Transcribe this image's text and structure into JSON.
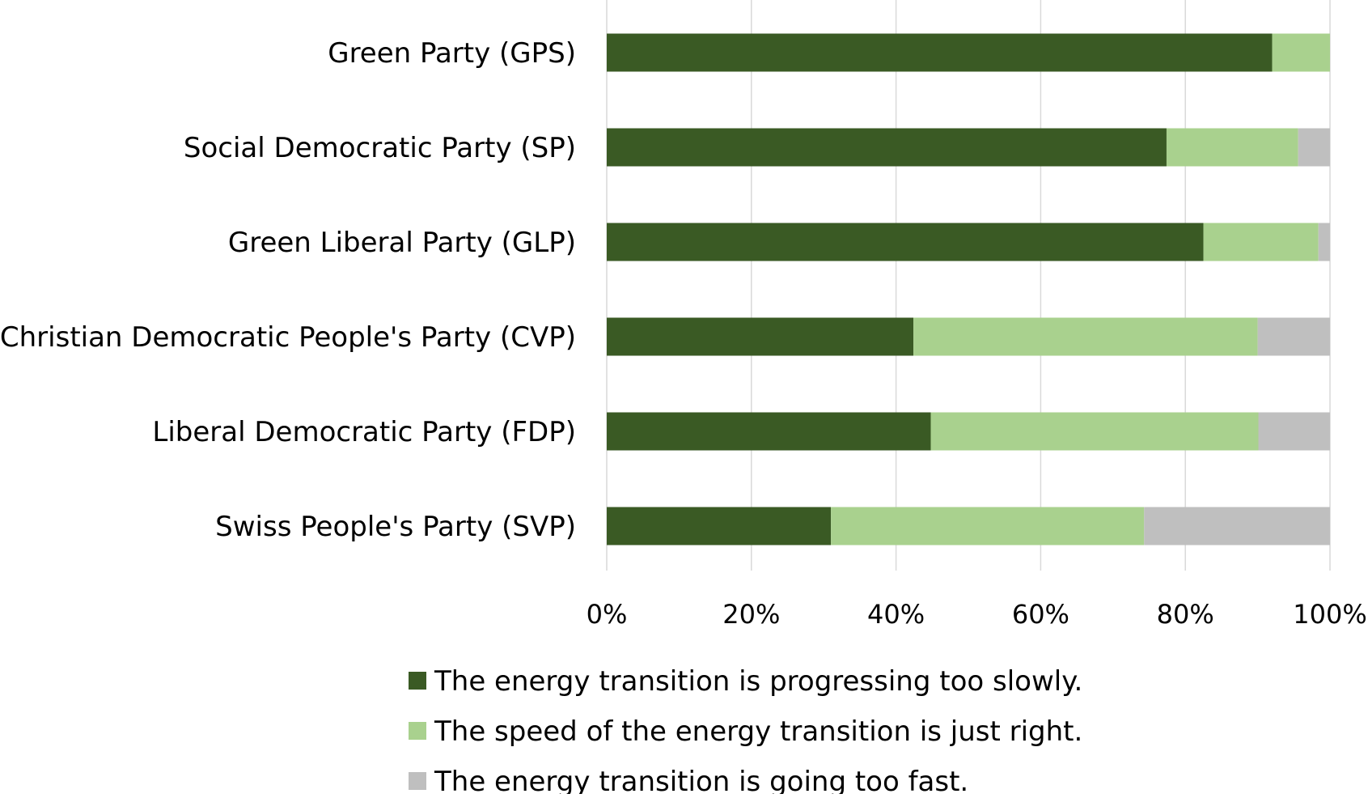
{
  "chart_data": {
    "type": "bar",
    "orientation": "horizontal",
    "stacked": "percent",
    "categories": [
      "Green Party (GPS)",
      "Social Democratic Party (SP)",
      "Green Liberal Party (GLP)",
      "Christian Democratic People's Party (CVP)",
      "Liberal Democratic Party (FDP)",
      "Swiss People's Party (SVP)"
    ],
    "series": [
      {
        "name": "The energy transition is progressing too slowly.",
        "color": "#3a5a24",
        "values": [
          92,
          77.4,
          82.5,
          42.4,
          44.8,
          31
        ]
      },
      {
        "name": "The speed of the energy transition is just right.",
        "color": "#a9d18e",
        "values": [
          8,
          18.2,
          15.9,
          47.6,
          45.3,
          43.3
        ]
      },
      {
        "name": "The energy transition is going too fast.",
        "color": "#bfbfbf",
        "values": [
          0,
          4.4,
          1.6,
          10,
          9.9,
          25.7
        ]
      }
    ],
    "xlim": [
      0,
      100
    ],
    "xticks": [
      "0%",
      "20%",
      "40%",
      "60%",
      "80%",
      "100%"
    ],
    "title": "",
    "xlabel": "",
    "ylabel": "",
    "grid": "vertical",
    "legend_position": "bottom"
  }
}
